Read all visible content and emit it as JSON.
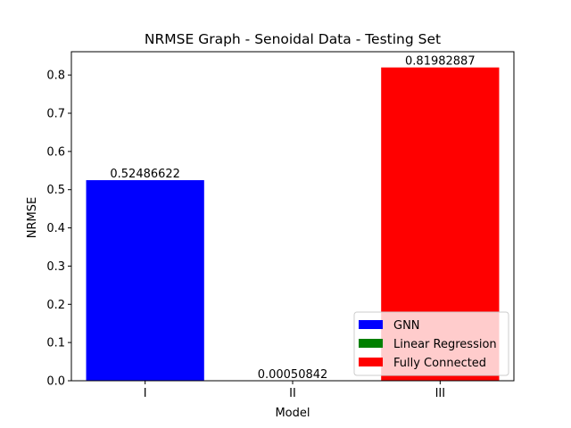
{
  "chart_data": {
    "type": "bar",
    "title": "NRMSE Graph - Senoidal Data - Testing Set",
    "xlabel": "Model",
    "ylabel": "NRMSE",
    "categories": [
      "I",
      "II",
      "III"
    ],
    "values": [
      0.52486622,
      0.00050842,
      0.81982887
    ],
    "value_labels": [
      "0.52486622",
      "0.00050842",
      "0.81982887"
    ],
    "colors": [
      "#0000ff",
      "#008000",
      "#ff0000"
    ],
    "ylim": [
      0,
      0.861
    ],
    "yticks": [
      0.0,
      0.1,
      0.2,
      0.3,
      0.4,
      0.5,
      0.6,
      0.7,
      0.8
    ],
    "ytick_labels": [
      "0.0",
      "0.1",
      "0.2",
      "0.3",
      "0.4",
      "0.5",
      "0.6",
      "0.7",
      "0.8"
    ],
    "grid": false,
    "legend": {
      "placement": "lower-right",
      "entries": [
        {
          "label": "GNN",
          "color": "#0000ff"
        },
        {
          "label": "Linear Regression",
          "color": "#008000"
        },
        {
          "label": "Fully Connected",
          "color": "#ff0000"
        }
      ]
    }
  }
}
